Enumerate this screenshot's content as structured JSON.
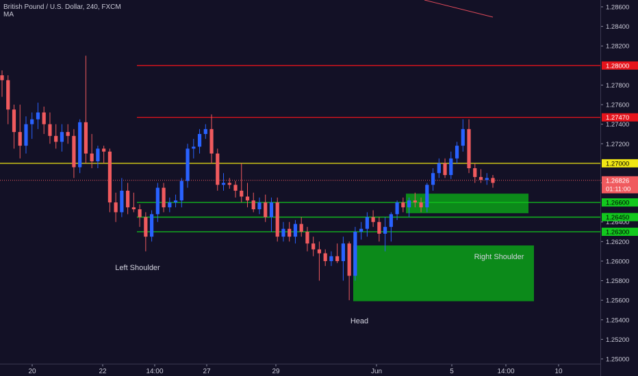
{
  "chart_title": "British Pound / U.S. Dollar, 240, FXCM",
  "indicator_label": "MA",
  "colors": {
    "background": "#131126",
    "bull": "#2962ff",
    "bear": "#f05a5e",
    "red_line": "#e6141c",
    "yellow_line": "#f0e614",
    "green_line": "#12c81e",
    "zone_fill": "#0c8a1a"
  },
  "chart_data": {
    "type": "candlestick",
    "symbol": "GBPUSD",
    "timeframe": "240",
    "ylim": [
      1.2495,
      1.2875
    ],
    "y_ticks": [
      "1.28600",
      "1.28400",
      "1.28200",
      "1.27800",
      "1.27600",
      "1.27400",
      "1.27200",
      "1.26800",
      "1.26400",
      "1.26200",
      "1.26000",
      "1.25800",
      "1.25600",
      "1.25400",
      "1.25200",
      "1.25000"
    ],
    "x_ticks": [
      "20",
      "22",
      "14:00",
      "27",
      "29",
      "Jun",
      "5",
      "14:00",
      "10"
    ],
    "price_levels": [
      {
        "value": 1.28,
        "label": "1.28000",
        "color": "red"
      },
      {
        "value": 1.2747,
        "label": "1.27470",
        "color": "red"
      },
      {
        "value": 1.27,
        "label": "1.27000",
        "color": "yellow"
      },
      {
        "value": 1.266,
        "label": "1.26600",
        "color": "green"
      },
      {
        "value": 1.2645,
        "label": "1.26450",
        "color": "green"
      },
      {
        "value": 1.263,
        "label": "1.26300",
        "color": "green"
      }
    ],
    "current_price": {
      "value": 1.26826,
      "label": "1.26826",
      "countdown": "01:11:00"
    },
    "annotations": [
      "Left Shoulder",
      "Head",
      "Right Shoulder"
    ],
    "candles": [
      [
        1.279,
        1.2795,
        1.2768,
        1.2785
      ],
      [
        1.2785,
        1.279,
        1.274,
        1.2755
      ],
      [
        1.2755,
        1.276,
        1.2715,
        1.2732
      ],
      [
        1.2732,
        1.276,
        1.2705,
        1.2718
      ],
      [
        1.2718,
        1.2748,
        1.271,
        1.274
      ],
      [
        1.274,
        1.2752,
        1.2725,
        1.2745
      ],
      [
        1.2745,
        1.2762,
        1.2735,
        1.2752
      ],
      [
        1.2752,
        1.2758,
        1.273,
        1.274
      ],
      [
        1.274,
        1.2752,
        1.272,
        1.2728
      ],
      [
        1.2728,
        1.274,
        1.2715,
        1.2722
      ],
      [
        1.2722,
        1.274,
        1.2712,
        1.2732
      ],
      [
        1.2732,
        1.274,
        1.272,
        1.2728
      ],
      [
        1.2728,
        1.2735,
        1.2685,
        1.2696
      ],
      [
        1.2696,
        1.2745,
        1.269,
        1.2742
      ],
      [
        1.2742,
        1.281,
        1.27,
        1.271
      ],
      [
        1.271,
        1.273,
        1.2695,
        1.2702
      ],
      [
        1.2702,
        1.2718,
        1.2695,
        1.2715
      ],
      [
        1.2715,
        1.2718,
        1.27,
        1.2712
      ],
      [
        1.2712,
        1.2715,
        1.265,
        1.266
      ],
      [
        1.266,
        1.267,
        1.264,
        1.265
      ],
      [
        1.265,
        1.2685,
        1.2645,
        1.2672
      ],
      [
        1.2672,
        1.268,
        1.2648,
        1.2655
      ],
      [
        1.2655,
        1.267,
        1.265,
        1.2653
      ],
      [
        1.2653,
        1.2658,
        1.2635,
        1.2645
      ],
      [
        1.2645,
        1.265,
        1.261,
        1.2625
      ],
      [
        1.2625,
        1.2652,
        1.262,
        1.2648
      ],
      [
        1.2648,
        1.268,
        1.264,
        1.2675
      ],
      [
        1.2675,
        1.268,
        1.265,
        1.2655
      ],
      [
        1.2655,
        1.2665,
        1.265,
        1.266
      ],
      [
        1.266,
        1.2668,
        1.2655,
        1.2662
      ],
      [
        1.2662,
        1.2685,
        1.2655,
        1.2682
      ],
      [
        1.2682,
        1.272,
        1.2675,
        1.2715
      ],
      [
        1.2715,
        1.2725,
        1.2705,
        1.2717
      ],
      [
        1.2717,
        1.2735,
        1.271,
        1.273
      ],
      [
        1.273,
        1.274,
        1.2725,
        1.2735
      ],
      [
        1.2735,
        1.275,
        1.27,
        1.271
      ],
      [
        1.271,
        1.2715,
        1.2672,
        1.2678
      ],
      [
        1.2678,
        1.269,
        1.2672,
        1.268
      ],
      [
        1.268,
        1.2685,
        1.2674,
        1.2678
      ],
      [
        1.2678,
        1.2682,
        1.2665,
        1.2672
      ],
      [
        1.2672,
        1.27,
        1.266,
        1.2666
      ],
      [
        1.2666,
        1.268,
        1.2655,
        1.2662
      ],
      [
        1.2662,
        1.267,
        1.265,
        1.2653
      ],
      [
        1.2653,
        1.2665,
        1.2648,
        1.266
      ],
      [
        1.266,
        1.2668,
        1.264,
        1.2645
      ],
      [
        1.2645,
        1.2665,
        1.263,
        1.266
      ],
      [
        1.266,
        1.2665,
        1.262,
        1.2625
      ],
      [
        1.2625,
        1.264,
        1.262,
        1.2633
      ],
      [
        1.2633,
        1.264,
        1.262,
        1.2625
      ],
      [
        1.2625,
        1.2642,
        1.2618,
        1.2638
      ],
      [
        1.2638,
        1.2645,
        1.2625,
        1.263
      ],
      [
        1.263,
        1.2635,
        1.261,
        1.2618
      ],
      [
        1.2618,
        1.2625,
        1.2605,
        1.2612
      ],
      [
        1.2612,
        1.262,
        1.258,
        1.2608
      ],
      [
        1.2608,
        1.2612,
        1.2595,
        1.26
      ],
      [
        1.26,
        1.261,
        1.2595,
        1.2605
      ],
      [
        1.2605,
        1.2618,
        1.2598,
        1.26
      ],
      [
        1.26,
        1.2625,
        1.258,
        1.2618
      ],
      [
        1.2618,
        1.262,
        1.256,
        1.2585
      ],
      [
        1.2585,
        1.2635,
        1.258,
        1.263
      ],
      [
        1.263,
        1.264,
        1.2622,
        1.2633
      ],
      [
        1.2633,
        1.265,
        1.2625,
        1.2645
      ],
      [
        1.2645,
        1.2652,
        1.2635,
        1.264
      ],
      [
        1.264,
        1.2645,
        1.262,
        1.2628
      ],
      [
        1.2628,
        1.2645,
        1.261,
        1.2635
      ],
      [
        1.2635,
        1.265,
        1.262,
        1.2648
      ],
      [
        1.2648,
        1.2662,
        1.2642,
        1.266
      ],
      [
        1.266,
        1.2665,
        1.265,
        1.2655
      ],
      [
        1.2655,
        1.2665,
        1.2645,
        1.2662
      ],
      [
        1.2662,
        1.267,
        1.2655,
        1.266
      ],
      [
        1.266,
        1.2665,
        1.265,
        1.2655
      ],
      [
        1.2655,
        1.268,
        1.265,
        1.2678
      ],
      [
        1.2678,
        1.2695,
        1.2672,
        1.269
      ],
      [
        1.269,
        1.2705,
        1.2685,
        1.27
      ],
      [
        1.27,
        1.2705,
        1.2685,
        1.2688
      ],
      [
        1.2688,
        1.2712,
        1.2684,
        1.2705
      ],
      [
        1.2705,
        1.2722,
        1.27,
        1.2718
      ],
      [
        1.2718,
        1.2745,
        1.2712,
        1.2735
      ],
      [
        1.2735,
        1.2745,
        1.269,
        1.2695
      ],
      [
        1.2695,
        1.27,
        1.268,
        1.2686
      ],
      [
        1.2686,
        1.2694,
        1.268,
        1.2683
      ],
      [
        1.2683,
        1.269,
        1.2678,
        1.2685
      ],
      [
        1.2685,
        1.2688,
        1.2675,
        1.268
      ]
    ]
  }
}
